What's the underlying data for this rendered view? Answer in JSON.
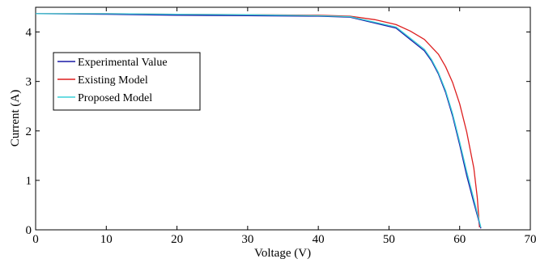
{
  "chart_data": {
    "type": "line",
    "xlabel": "Voltage (V)",
    "ylabel": "Current (A)",
    "xlim": [
      0,
      70
    ],
    "ylim": [
      0,
      4.5
    ],
    "xticks": [
      0,
      10,
      20,
      30,
      40,
      50,
      60,
      70
    ],
    "yticks": [
      0,
      1,
      2,
      3,
      4
    ],
    "grid": false,
    "legend_position": "middle-left",
    "series": [
      {
        "name": "Experimental Value",
        "color": "#1a1aa6",
        "x": [
          0,
          10,
          20,
          30,
          40,
          44.5,
          51,
          55,
          56,
          57,
          58,
          59,
          60,
          61,
          62,
          63
        ],
        "y": [
          4.37,
          4.36,
          4.34,
          4.33,
          4.32,
          4.3,
          4.08,
          3.62,
          3.42,
          3.15,
          2.78,
          2.3,
          1.72,
          1.1,
          0.55,
          0.03
        ]
      },
      {
        "name": "Existing Model",
        "color": "#dd1f1f",
        "x": [
          0,
          10,
          20,
          30,
          40,
          44.5,
          48,
          51,
          53,
          55,
          57,
          58,
          59,
          60,
          61,
          62,
          62.5,
          62.8
        ],
        "y": [
          4.37,
          4.37,
          4.36,
          4.35,
          4.34,
          4.32,
          4.25,
          4.15,
          4.02,
          3.85,
          3.55,
          3.3,
          2.98,
          2.55,
          1.98,
          1.25,
          0.65,
          0.05
        ]
      },
      {
        "name": "Proposed Model",
        "color": "#3ad0d8",
        "x": [
          0,
          10,
          20,
          30,
          40,
          44.5,
          51,
          55,
          56,
          57,
          58,
          59,
          60,
          61,
          62,
          63
        ],
        "y": [
          4.37,
          4.37,
          4.36,
          4.35,
          4.33,
          4.31,
          4.1,
          3.65,
          3.45,
          3.18,
          2.82,
          2.35,
          1.78,
          1.18,
          0.62,
          0.05
        ]
      }
    ]
  }
}
